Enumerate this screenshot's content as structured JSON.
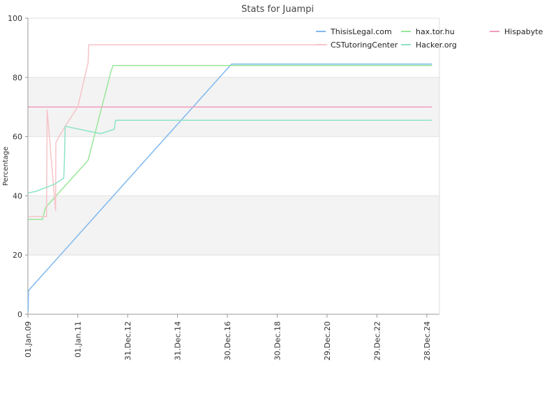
{
  "chart_data": {
    "type": "line",
    "title": "Stats for Juampi",
    "xlabel": "",
    "ylabel": "Percentage",
    "ylim": [
      0,
      100
    ],
    "yticks": [
      0,
      20,
      40,
      60,
      80,
      100
    ],
    "xlim": [
      "2009-01-01",
      "2025-07-01"
    ],
    "xticks": [
      {
        "date": "2009-01-01",
        "label": "01.Jan.09"
      },
      {
        "date": "2011-01-01",
        "label": "01.Jan.11"
      },
      {
        "date": "2012-12-31",
        "label": "31.Dec.12"
      },
      {
        "date": "2014-12-31",
        "label": "31.Dec.14"
      },
      {
        "date": "2016-12-30",
        "label": "30.Dec.16"
      },
      {
        "date": "2018-12-30",
        "label": "30.Dec.18"
      },
      {
        "date": "2020-12-29",
        "label": "29.Dec.20"
      },
      {
        "date": "2022-12-29",
        "label": "29.Dec.22"
      },
      {
        "date": "2024-12-28",
        "label": "28.Dec.24"
      }
    ],
    "grid": "alternating horizontal bands",
    "legend_position": "top-right",
    "series": [
      {
        "name": "ThisisLegal.com",
        "color": "#7fb8ee",
        "points": [
          [
            "2009-01-05",
            1
          ],
          [
            "2009-01-07",
            5
          ],
          [
            "2009-01-09",
            8
          ],
          [
            "2017-03-01",
            84.5
          ],
          [
            "2025-03-15",
            84.5
          ]
        ]
      },
      {
        "name": "hax.tor.hu",
        "color": "#99e699",
        "points": [
          [
            "2009-01-05",
            32
          ],
          [
            "2009-08-01",
            32
          ],
          [
            "2009-09-15",
            36
          ],
          [
            "2011-06-01",
            52
          ],
          [
            "2012-05-01",
            82
          ],
          [
            "2012-06-01",
            84
          ],
          [
            "2025-03-15",
            84
          ]
        ]
      },
      {
        "name": "Hispabyte",
        "color": "#f29bbf",
        "points": [
          [
            "2009-01-05",
            70
          ],
          [
            "2025-03-15",
            70
          ]
        ]
      },
      {
        "name": "CSTutoringCenter",
        "color": "#f7c3c8",
        "points": [
          [
            "2009-01-05",
            33
          ],
          [
            "2009-10-01",
            33
          ],
          [
            "2009-10-10",
            69
          ],
          [
            "2010-02-10",
            35
          ],
          [
            "2010-02-15",
            58
          ],
          [
            "2010-04-01",
            60
          ],
          [
            "2010-07-15",
            64
          ],
          [
            "2011-01-01",
            70
          ],
          [
            "2011-06-01",
            85
          ],
          [
            "2011-06-10",
            91
          ],
          [
            "2021-01-01",
            91
          ]
        ]
      },
      {
        "name": "Hacker.org",
        "color": "#8ee3c7",
        "points": [
          [
            "2009-01-05",
            41
          ],
          [
            "2009-05-01",
            41.5
          ],
          [
            "2010-02-01",
            44
          ],
          [
            "2010-06-10",
            46
          ],
          [
            "2010-06-20",
            52
          ],
          [
            "2010-07-01",
            63.5
          ],
          [
            "2011-12-01",
            61
          ],
          [
            "2012-06-20",
            62.5
          ],
          [
            "2012-07-01",
            64.5
          ],
          [
            "2012-07-10",
            65.5
          ],
          [
            "2025-03-15",
            65.5
          ]
        ]
      }
    ]
  }
}
